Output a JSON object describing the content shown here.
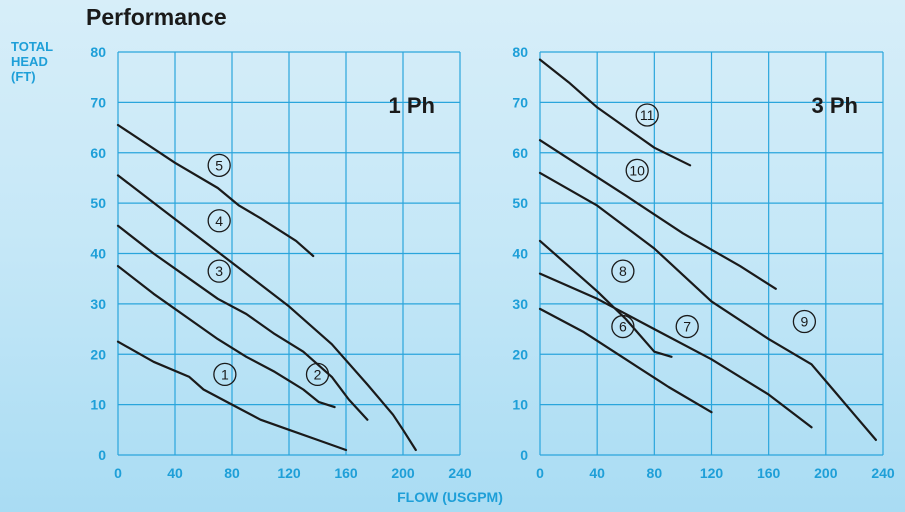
{
  "page": {
    "title": "Performance",
    "y_title": [
      "TOTAL",
      "HEAD",
      "(FT)"
    ],
    "x_title": "FLOW (USGPM)"
  },
  "colors": {
    "grid": "#2aa5dc",
    "axis_text": "#1e9fd8",
    "curve": "#1a1a1a"
  },
  "chart_data": [
    {
      "type": "line",
      "panel_label": "1 Ph",
      "xlim": [
        0,
        240
      ],
      "ylim": [
        0,
        80
      ],
      "x_ticks": [
        0,
        40,
        80,
        120,
        160,
        200,
        240
      ],
      "y_ticks": [
        0,
        10,
        20,
        30,
        40,
        50,
        60,
        70,
        80
      ],
      "grid": true,
      "series": [
        {
          "name": "①",
          "marker_at": [
            75,
            16
          ],
          "points": [
            [
              0,
              22.5
            ],
            [
              25,
              18.5
            ],
            [
              50,
              15.5
            ],
            [
              60,
              13
            ],
            [
              80,
              10
            ],
            [
              100,
              7
            ],
            [
              120,
              5
            ],
            [
              140,
              3
            ],
            [
              160,
              1
            ]
          ]
        },
        {
          "name": "②",
          "marker_at": [
            140,
            16
          ],
          "points": [
            [
              0,
              37.5
            ],
            [
              25,
              32
            ],
            [
              55,
              26
            ],
            [
              70,
              23
            ],
            [
              90,
              19.5
            ],
            [
              110,
              16.5
            ],
            [
              130,
              13
            ],
            [
              141,
              10.5
            ],
            [
              152,
              9.5
            ]
          ]
        },
        {
          "name": "③",
          "marker_at": [
            71,
            36.5
          ],
          "points": [
            [
              0,
              45.5
            ],
            [
              25,
              40
            ],
            [
              50,
              35
            ],
            [
              70,
              31
            ],
            [
              90,
              28
            ],
            [
              110,
              24
            ],
            [
              130,
              20.5
            ],
            [
              150,
              15.5
            ],
            [
              162,
              11
            ],
            [
              175,
              7
            ]
          ]
        },
        {
          "name": "④",
          "marker_at": [
            71,
            46.5
          ],
          "points": [
            [
              0,
              55.5
            ],
            [
              30,
              49
            ],
            [
              60,
              42.5
            ],
            [
              90,
              36
            ],
            [
              120,
              29.5
            ],
            [
              150,
              22
            ],
            [
              175,
              14
            ],
            [
              193,
              8
            ],
            [
              200,
              5
            ],
            [
              209,
              1
            ]
          ]
        },
        {
          "name": "⑤",
          "marker_at": [
            71,
            57.5
          ],
          "points": [
            [
              0,
              65.5
            ],
            [
              40,
              58
            ],
            [
              70,
              53
            ],
            [
              85,
              49.5
            ],
            [
              100,
              47
            ],
            [
              125,
              42.5
            ],
            [
              137,
              39.5
            ]
          ]
        }
      ]
    },
    {
      "type": "line",
      "panel_label": "3 Ph",
      "xlim": [
        0,
        240
      ],
      "ylim": [
        0,
        80
      ],
      "x_ticks": [
        0,
        40,
        80,
        120,
        160,
        200,
        240
      ],
      "y_ticks": [
        0,
        10,
        20,
        30,
        40,
        50,
        60,
        70,
        80
      ],
      "grid": true,
      "series": [
        {
          "name": "⑥",
          "marker_at": [
            58,
            25.5
          ],
          "points": [
            [
              0,
              29
            ],
            [
              30,
              24.5
            ],
            [
              60,
              19
            ],
            [
              90,
              13.5
            ],
            [
              120,
              8.5
            ]
          ]
        },
        {
          "name": "⑦",
          "marker_at": [
            103,
            25.5
          ],
          "points": [
            [
              0,
              36
            ],
            [
              40,
              31
            ],
            [
              80,
              25
            ],
            [
              120,
              19
            ],
            [
              160,
              12
            ],
            [
              190,
              5.5
            ]
          ]
        },
        {
          "name": "⑧",
          "marker_at": [
            58,
            36.5
          ],
          "points": [
            [
              0,
              42.5
            ],
            [
              20,
              37.5
            ],
            [
              40,
              32.5
            ],
            [
              60,
              27
            ],
            [
              80,
              20.5
            ],
            [
              92,
              19.5
            ]
          ]
        },
        {
          "name": "⑨",
          "marker_at": [
            185,
            26.5
          ],
          "points": [
            [
              0,
              56
            ],
            [
              40,
              49.5
            ],
            [
              80,
              41
            ],
            [
              120,
              30.5
            ],
            [
              160,
              23
            ],
            [
              190,
              18
            ],
            [
              205,
              13
            ],
            [
              220,
              8
            ],
            [
              235,
              3
            ]
          ]
        },
        {
          "name": "⑩",
          "marker_at": [
            68,
            56.5
          ],
          "points": [
            [
              0,
              62.5
            ],
            [
              30,
              57
            ],
            [
              60,
              51.5
            ],
            [
              100,
              44
            ],
            [
              140,
              37.5
            ],
            [
              165,
              33
            ]
          ]
        },
        {
          "name": "⑪",
          "marker_at": [
            75,
            67.5
          ],
          "points": [
            [
              0,
              78.5
            ],
            [
              20,
              74
            ],
            [
              40,
              69
            ],
            [
              60,
              65
            ],
            [
              80,
              61
            ],
            [
              105,
              57.5
            ]
          ]
        }
      ]
    }
  ]
}
